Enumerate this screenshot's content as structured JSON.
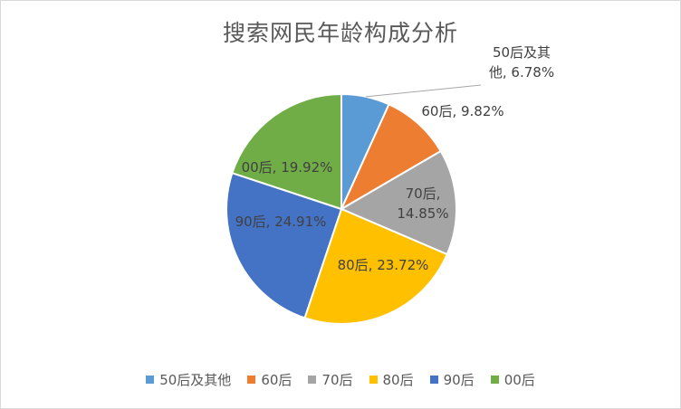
{
  "chart_data": {
    "type": "pie",
    "title": "搜索网民年龄构成分析",
    "categories": [
      "50后及其他",
      "60后",
      "70后",
      "80后",
      "90后",
      "00后"
    ],
    "values": [
      6.78,
      9.82,
      14.85,
      23.72,
      24.91,
      19.92
    ],
    "colors": [
      "#5B9BD5",
      "#ED7D31",
      "#A5A5A5",
      "#FFC000",
      "#4472C4",
      "#70AD47"
    ],
    "data_labels": [
      [
        "50后及其",
        "他, 6.78%"
      ],
      [
        "60后, 9.82%"
      ],
      [
        "70后,",
        "14.85%"
      ],
      [
        "80后, 23.72%"
      ],
      [
        "90后, 24.91%"
      ],
      [
        "00后, 19.92%"
      ]
    ],
    "legend_position": "bottom"
  }
}
